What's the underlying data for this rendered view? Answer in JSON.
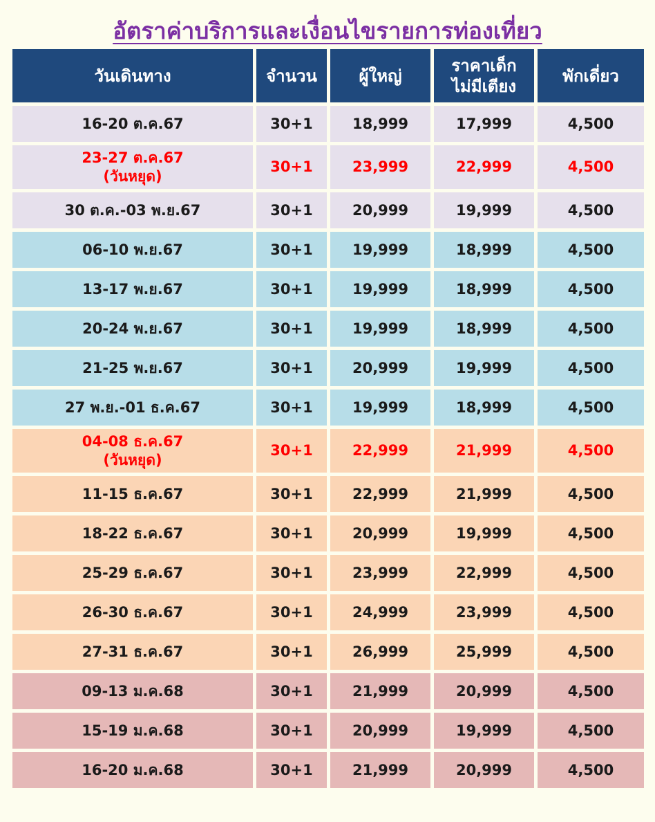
{
  "title": "อัตราค่าบริการและเงื่อนไขรายการท่องเที่ยว",
  "header": {
    "date": "วันเดินทาง",
    "count": "จำนวน",
    "adult": "ผู้ใหญ่",
    "child_line1": "ราคาเด็ก",
    "child_line2": "ไม่มีเตียง",
    "single": "พักเดี่ยว"
  },
  "colors": {
    "header_bg": "#1f497d",
    "holiday_text": "#ff0000",
    "lavender": "#e6e0ec",
    "blue": "#b7dde8",
    "peach": "#fbd5b5",
    "rose": "#e5b8b7"
  },
  "rows": [
    {
      "date": "16-20 ต.ค.67",
      "note": "",
      "count": "30+1",
      "adult": "18,999",
      "child": "17,999",
      "single": "4,500"
    },
    {
      "date": "23-27 ต.ค.67",
      "note": "(วันหยุด)",
      "count": "30+1",
      "adult": "23,999",
      "child": "22,999",
      "single": "4,500"
    },
    {
      "date": "30 ต.ค.-03 พ.ย.67",
      "note": "",
      "count": "30+1",
      "adult": "20,999",
      "child": "19,999",
      "single": "4,500"
    },
    {
      "date": "06-10 พ.ย.67",
      "note": "",
      "count": "30+1",
      "adult": "19,999",
      "child": "18,999",
      "single": "4,500"
    },
    {
      "date": "13-17 พ.ย.67",
      "note": "",
      "count": "30+1",
      "adult": "19,999",
      "child": "18,999",
      "single": "4,500"
    },
    {
      "date": "20-24 พ.ย.67",
      "note": "",
      "count": "30+1",
      "adult": "19,999",
      "child": "18,999",
      "single": "4,500"
    },
    {
      "date": "21-25 พ.ย.67",
      "note": "",
      "count": "30+1",
      "adult": "20,999",
      "child": "19,999",
      "single": "4,500"
    },
    {
      "date": "27 พ.ย.-01 ธ.ค.67",
      "note": "",
      "count": "30+1",
      "adult": "19,999",
      "child": "18,999",
      "single": "4,500"
    },
    {
      "date": "04-08 ธ.ค.67",
      "note": "(วันหยุด)",
      "count": "30+1",
      "adult": "22,999",
      "child": "21,999",
      "single": "4,500"
    },
    {
      "date": "11-15 ธ.ค.67",
      "note": "",
      "count": "30+1",
      "adult": "22,999",
      "child": "21,999",
      "single": "4,500"
    },
    {
      "date": "18-22 ธ.ค.67",
      "note": "",
      "count": "30+1",
      "adult": "20,999",
      "child": "19,999",
      "single": "4,500"
    },
    {
      "date": "25-29 ธ.ค.67",
      "note": "",
      "count": "30+1",
      "adult": "23,999",
      "child": "22,999",
      "single": "4,500"
    },
    {
      "date": "26-30 ธ.ค.67",
      "note": "",
      "count": "30+1",
      "adult": "24,999",
      "child": "23,999",
      "single": "4,500"
    },
    {
      "date": "27-31 ธ.ค.67",
      "note": "",
      "count": "30+1",
      "adult": "26,999",
      "child": "25,999",
      "single": "4,500"
    },
    {
      "date": "09-13 ม.ค.68",
      "note": "",
      "count": "30+1",
      "adult": "21,999",
      "child": "20,999",
      "single": "4,500"
    },
    {
      "date": "15-19 ม.ค.68",
      "note": "",
      "count": "30+1",
      "adult": "20,999",
      "child": "19,999",
      "single": "4,500"
    },
    {
      "date": "16-20 ม.ค.68",
      "note": "",
      "count": "30+1",
      "adult": "21,999",
      "child": "20,999",
      "single": "4,500"
    }
  ]
}
